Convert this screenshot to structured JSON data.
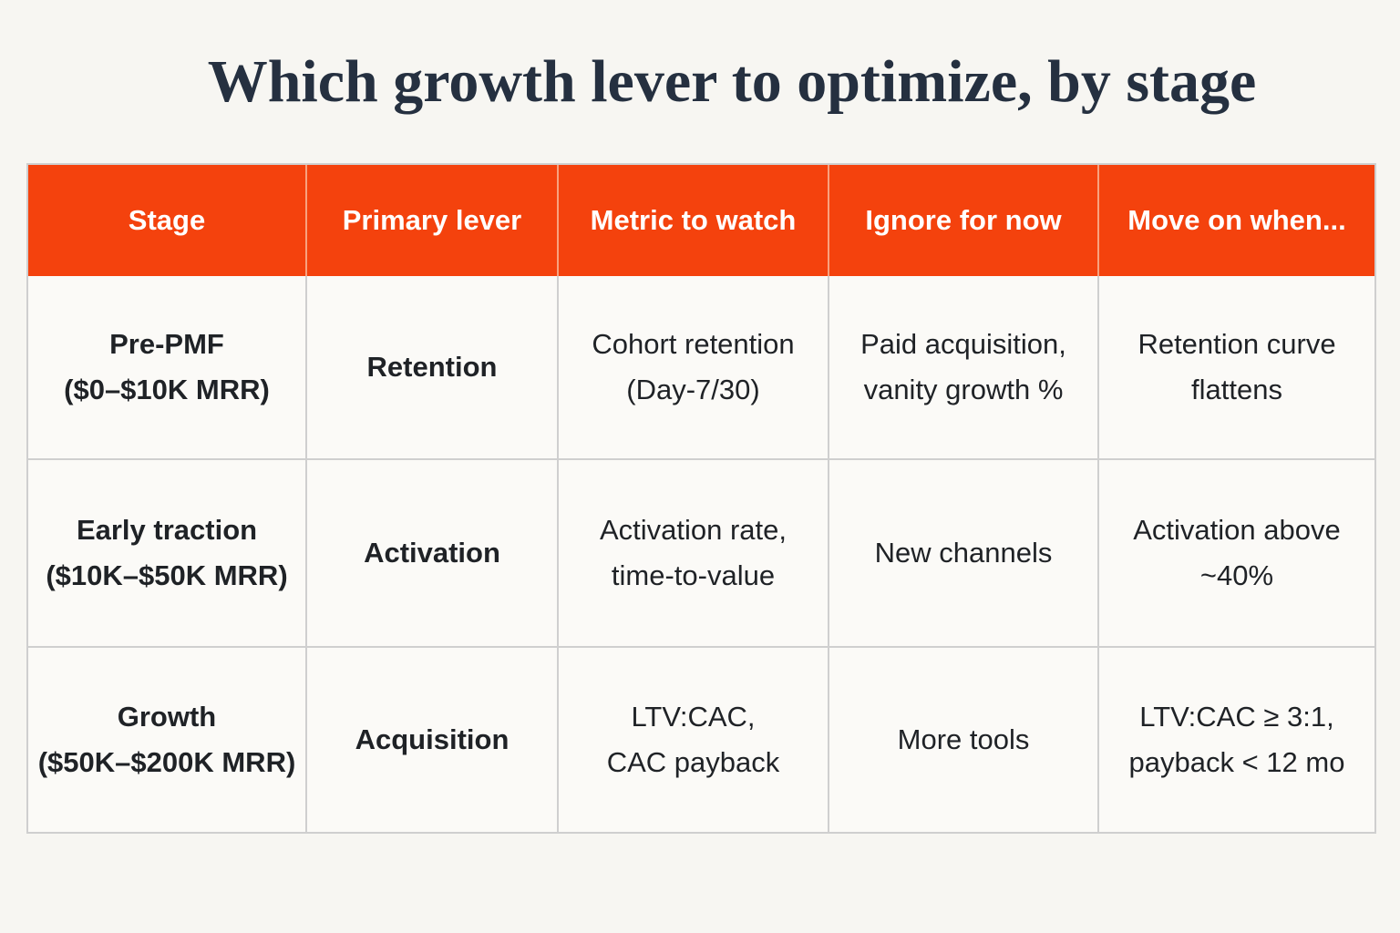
{
  "title": "Which growth lever to optimize, by stage",
  "table": {
    "header": [
      "Stage",
      "Primary lever",
      "Metric to watch",
      "Ignore for now",
      "Move on when..."
    ],
    "rows": [
      [
        [
          "Pre-PMF",
          "($0–$10K MRR)"
        ],
        [
          "Retention"
        ],
        [
          "Cohort retention",
          "(Day-7/30)"
        ],
        [
          "Paid acquisition,",
          "vanity growth %"
        ],
        [
          "Retention curve",
          "flattens"
        ]
      ],
      [
        [
          "Early traction",
          "($10K–$50K MRR)"
        ],
        [
          "Activation"
        ],
        [
          "Activation rate,",
          "time-to-value"
        ],
        [
          "New channels"
        ],
        [
          "Activation above",
          "~40%"
        ]
      ],
      [
        [
          "Growth",
          "($50K–$200K MRR)"
        ],
        [
          "Acquisition"
        ],
        [
          "LTV:CAC,",
          "CAC payback"
        ],
        [
          "More tools"
        ],
        [
          "LTV:CAC ≥ 3:1,",
          "payback < 12 mo"
        ]
      ]
    ]
  }
}
